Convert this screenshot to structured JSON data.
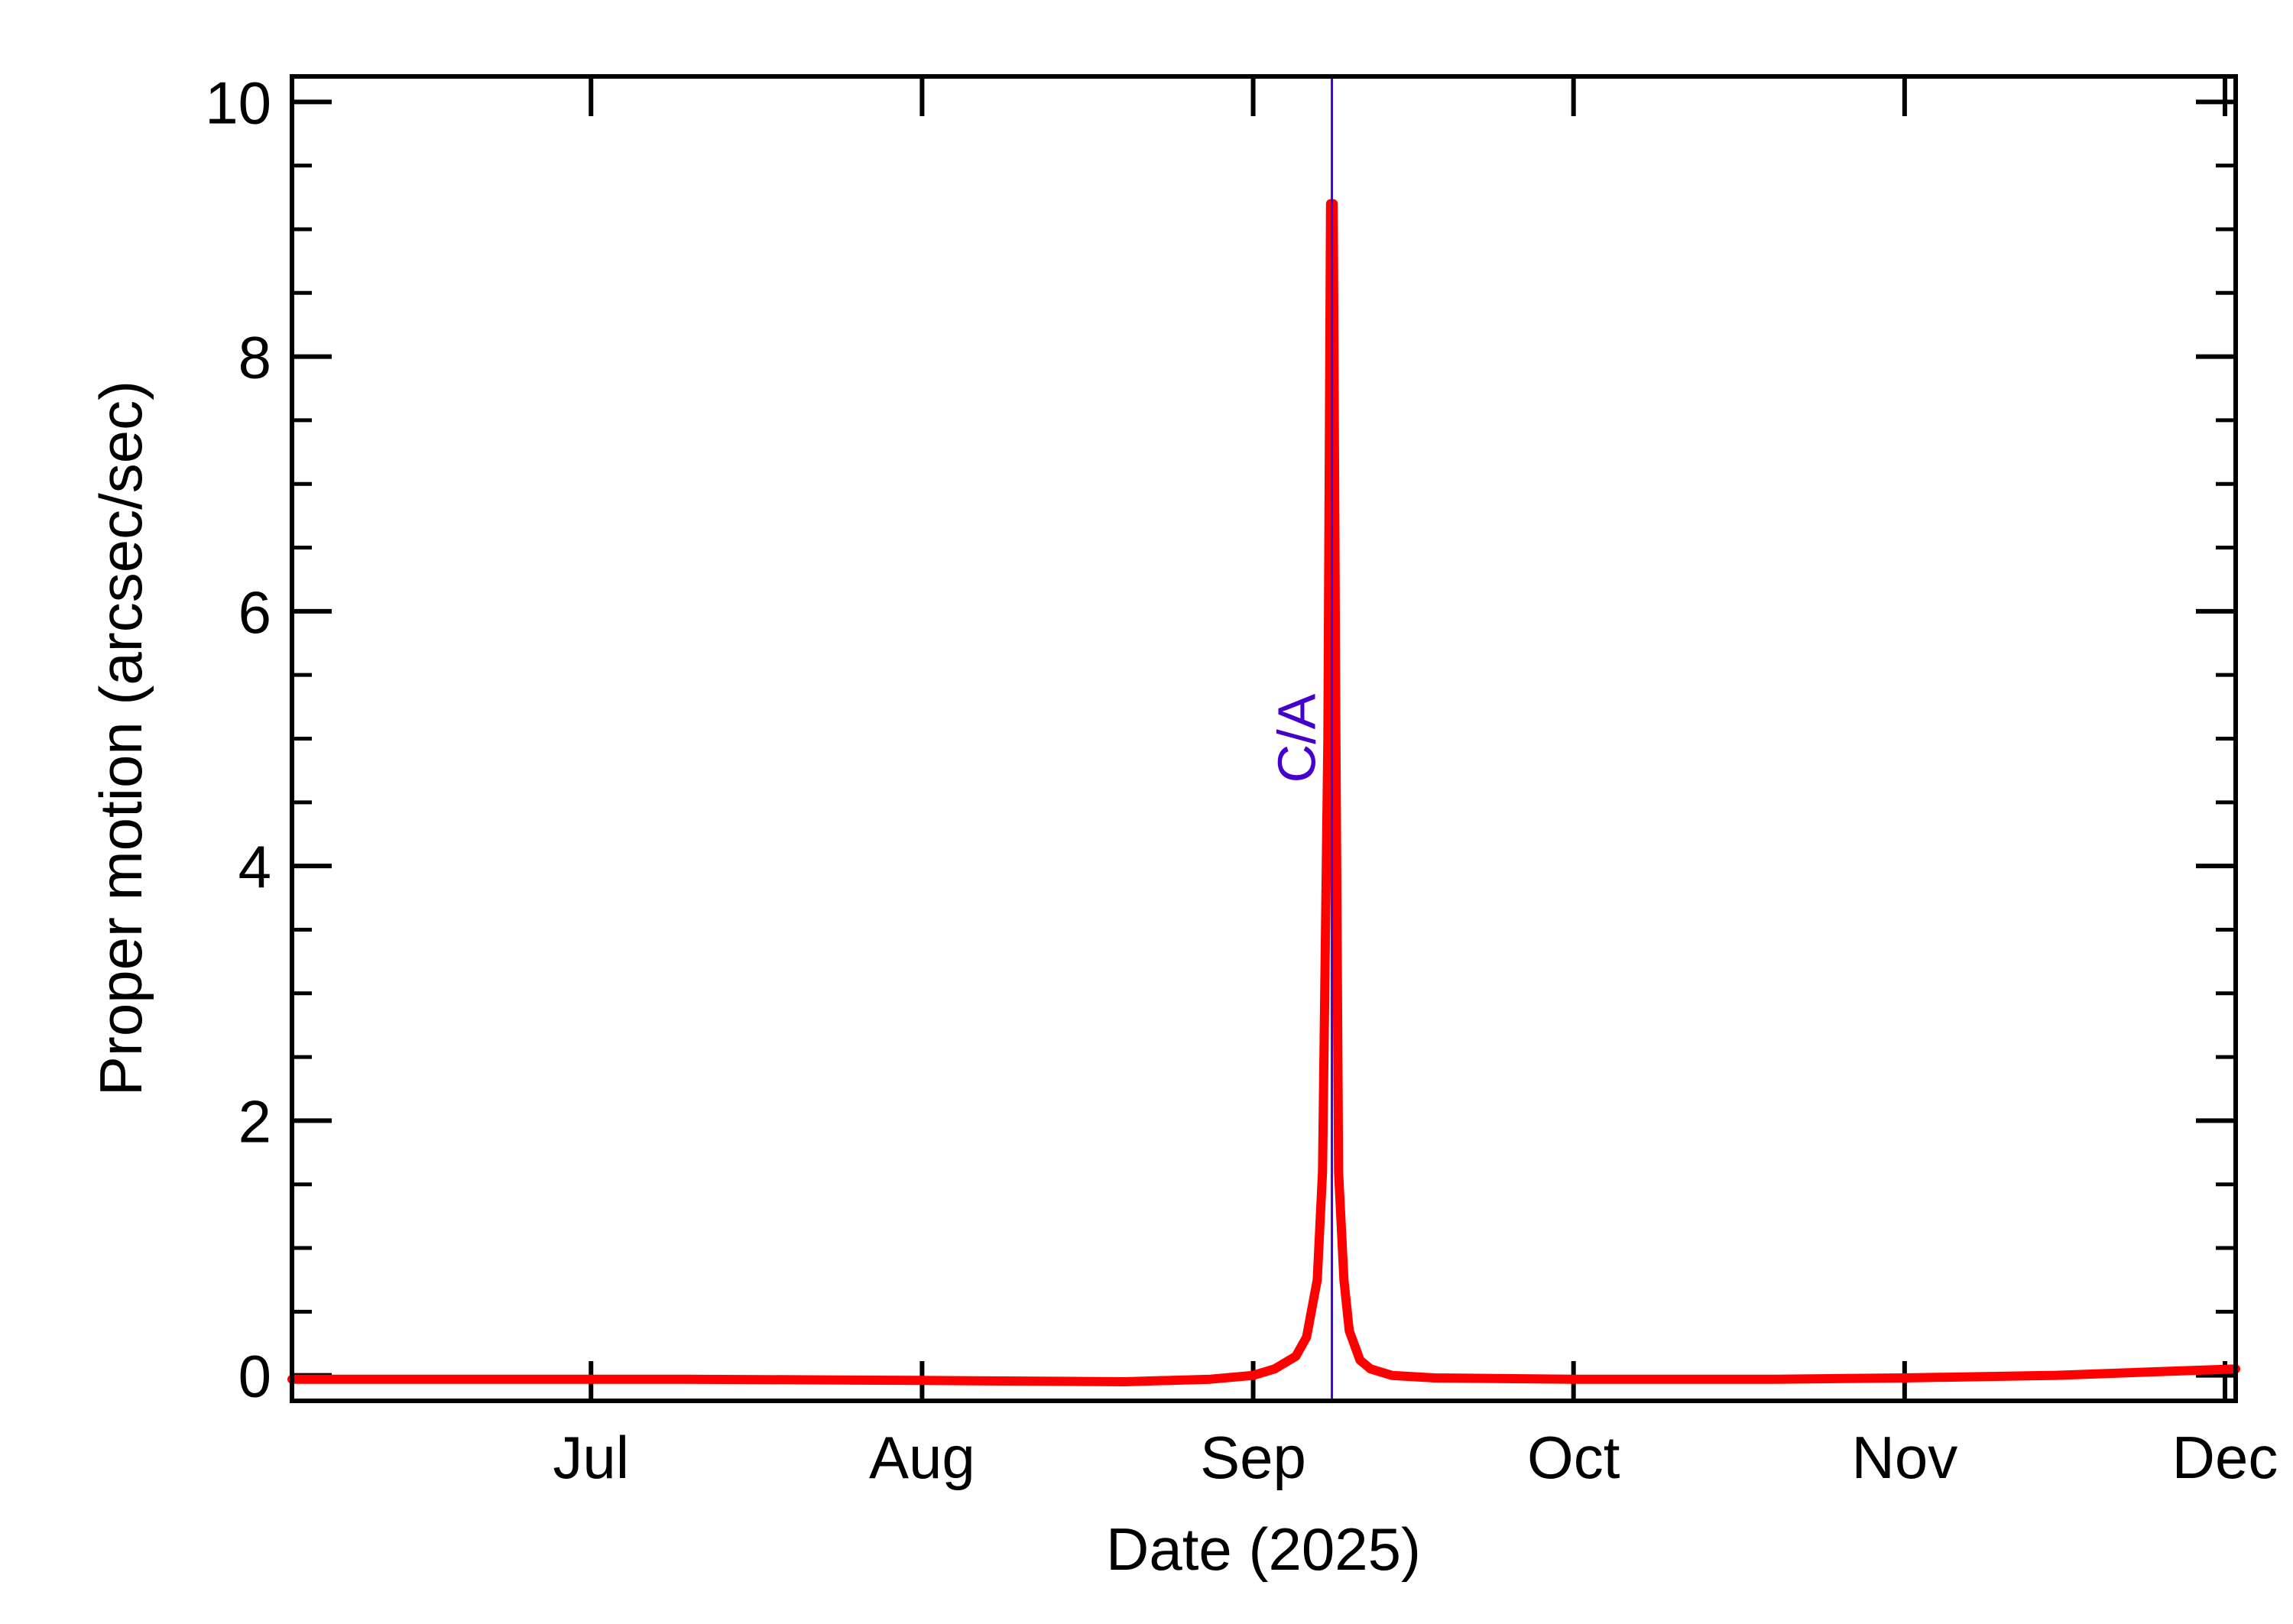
{
  "chart_data": {
    "type": "line",
    "title": "",
    "xlabel": "Date (2025)",
    "ylabel": "Proper motion (arcsec/sec)",
    "xlim": [
      "2025-06-03",
      "2025-12-02"
    ],
    "ylim": [
      -0.2,
      10.2
    ],
    "x_ticks": [
      {
        "date": "2025-07-01",
        "label": "Jul"
      },
      {
        "date": "2025-08-01",
        "label": "Aug"
      },
      {
        "date": "2025-09-01",
        "label": "Sep"
      },
      {
        "date": "2025-10-01",
        "label": "Oct"
      },
      {
        "date": "2025-11-01",
        "label": "Nov"
      },
      {
        "date": "2025-12-01",
        "label": "Dec"
      }
    ],
    "y_ticks": [
      0,
      2,
      4,
      6,
      8,
      10
    ],
    "grid": false,
    "legend": "none",
    "series": [
      {
        "color": "#ff0000",
        "x": [
          "2025-06-03",
          "2025-06-20",
          "2025-07-10",
          "2025-08-01",
          "2025-08-20",
          "2025-08-28",
          "2025-09-01",
          "2025-09-03",
          "2025-09-05",
          "2025-09-06",
          "2025-09-07",
          "2025-09-07T12:00",
          "2025-09-08",
          "2025-09-08T06:00",
          "2025-09-08T12:00",
          "2025-09-08T18:00",
          "2025-09-09",
          "2025-09-09T12:00",
          "2025-09-10",
          "2025-09-11",
          "2025-09-12",
          "2025-09-14",
          "2025-09-18",
          "2025-10-01",
          "2025-10-20",
          "2025-11-01",
          "2025-11-15",
          "2025-12-02"
        ],
        "y": [
          -0.03,
          -0.03,
          -0.03,
          -0.04,
          -0.05,
          -0.03,
          0.0,
          0.05,
          0.15,
          0.3,
          0.75,
          1.6,
          5.0,
          9.2,
          9.2,
          5.0,
          1.6,
          0.75,
          0.35,
          0.12,
          0.05,
          0.0,
          -0.02,
          -0.03,
          -0.03,
          -0.02,
          0.0,
          0.05
        ]
      }
    ],
    "annotations": [
      {
        "type": "vline",
        "x": "2025-09-08T09:00",
        "color": "#4400cc",
        "label": "C/A"
      }
    ]
  }
}
